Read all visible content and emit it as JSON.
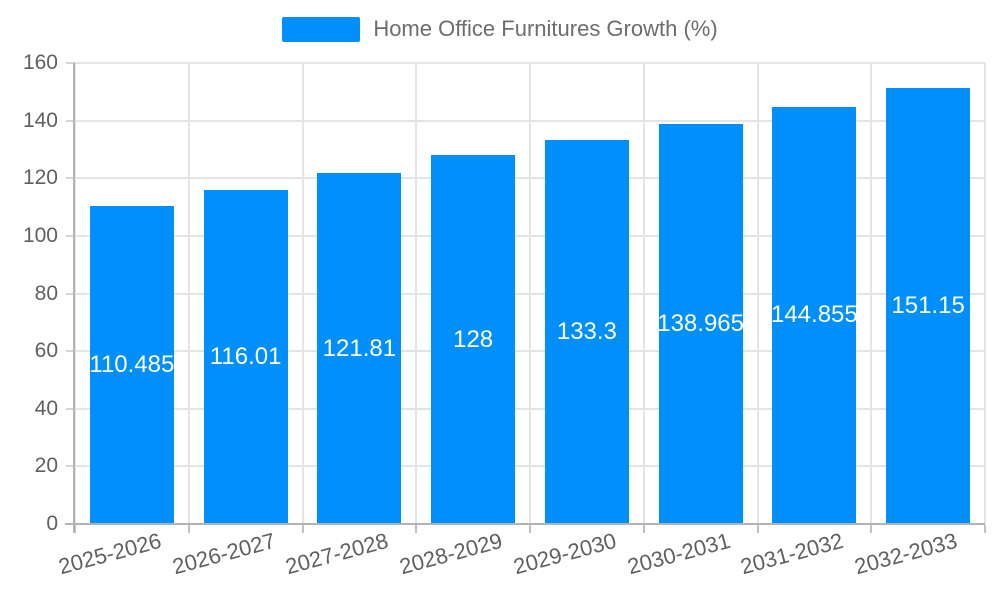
{
  "legend": {
    "label": "Home Office Furnitures Growth (%)",
    "swatch_color": "#008FFB"
  },
  "chart_data": {
    "type": "bar",
    "title": "Home Office Furnitures Growth (%)",
    "series_name": "Home Office Furnitures Growth (%)",
    "categories": [
      "2025-2026",
      "2026-2027",
      "2027-2028",
      "2028-2029",
      "2029-2030",
      "2030-2031",
      "2031-2032",
      "2032-2033"
    ],
    "values": [
      110.485,
      116.01,
      121.81,
      128,
      133.3,
      138.965,
      144.855,
      151.15
    ],
    "data_labels": [
      "110.485",
      "116.01",
      "121.81",
      "128",
      "133.3",
      "138.965",
      "144.855",
      "151.15"
    ],
    "xlabel": "",
    "ylabel": "",
    "ylim": [
      0,
      160
    ],
    "ytick_step": 20,
    "ytick_labels": [
      "0",
      "20",
      "40",
      "60",
      "80",
      "100",
      "120",
      "140",
      "160"
    ],
    "grid": true,
    "legend_position": "top",
    "bar_color": "#008FFB",
    "data_label_color": "#ffffff",
    "axis_label_color": "#606060"
  }
}
